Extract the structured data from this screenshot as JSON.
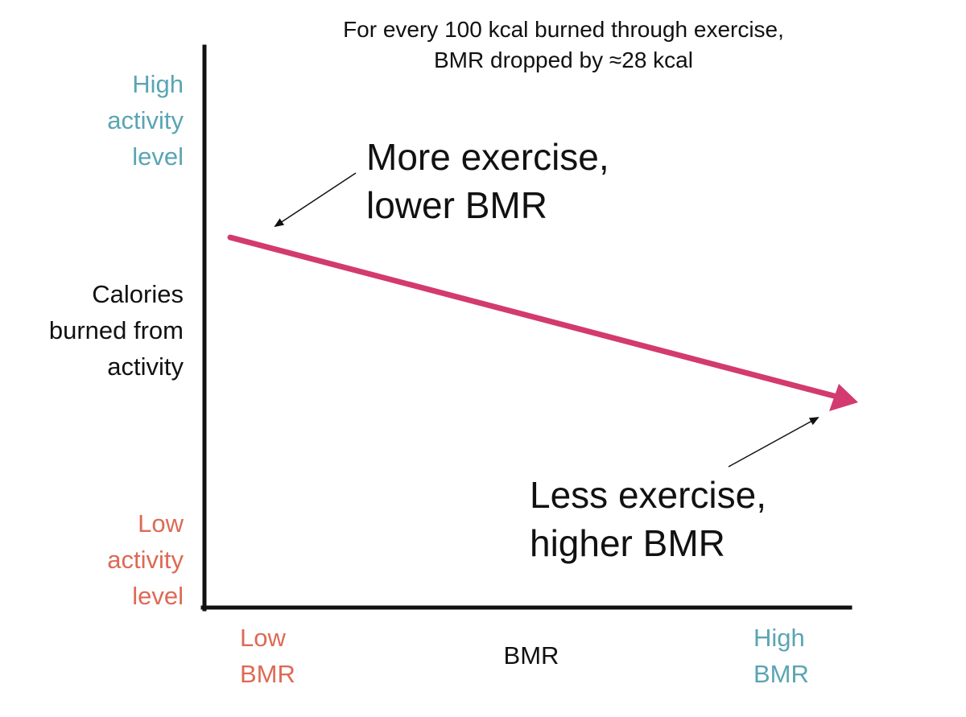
{
  "caption": {
    "line1": "For every 100 kcal burned through exercise,",
    "line2": "BMR dropped by ≈28 kcal"
  },
  "y_axis": {
    "title": [
      "Calories",
      "burned from",
      "activity"
    ],
    "high_label": [
      "High",
      "activity",
      "level"
    ],
    "low_label": [
      "Low",
      "activity",
      "level"
    ]
  },
  "x_axis": {
    "title": "BMR",
    "low_label": [
      "Low",
      "BMR"
    ],
    "high_label": [
      "High",
      "BMR"
    ]
  },
  "annotations": {
    "more_exercise": [
      "More exercise,",
      "lower BMR"
    ],
    "less_exercise": [
      "Less exercise,",
      "higher BMR"
    ]
  },
  "colors": {
    "trend_arrow": "#d33a6f",
    "high_label": "#5aa5b3",
    "low_label": "#dd6a55",
    "axis": "#111111",
    "text": "#111111"
  }
}
